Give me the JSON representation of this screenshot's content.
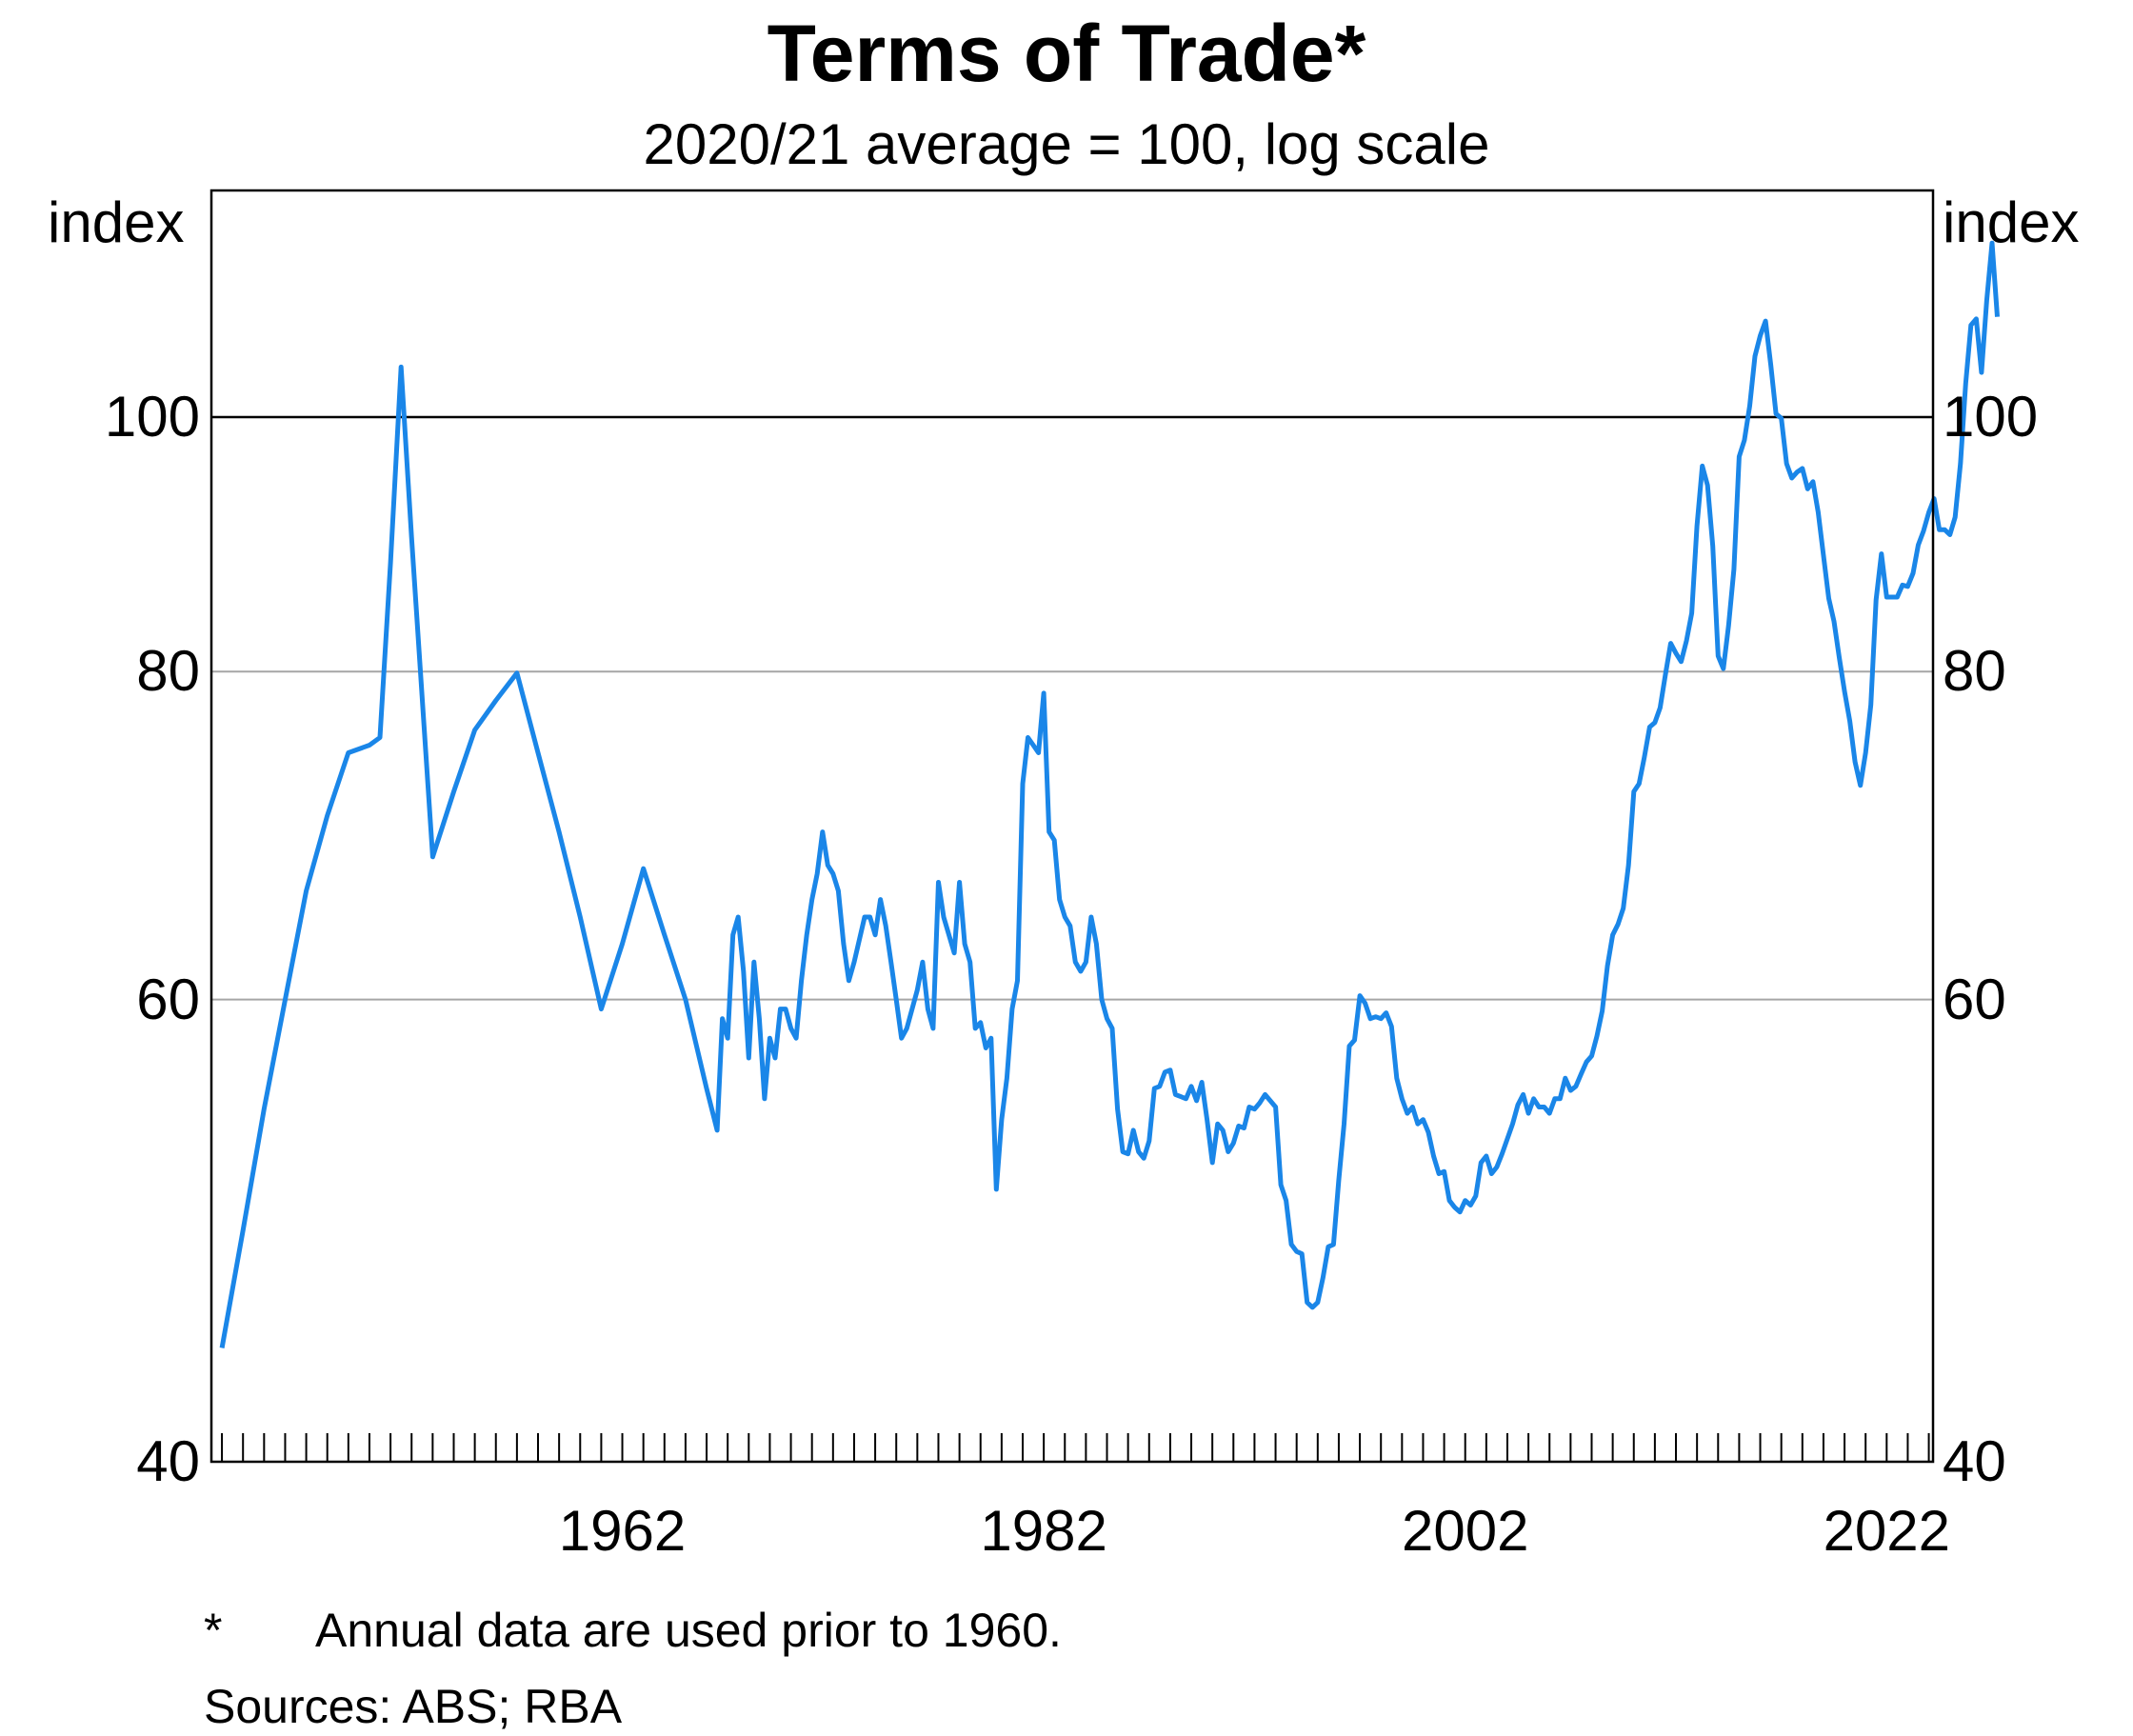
{
  "chart_data": {
    "type": "line",
    "title": "Terms of Trade*",
    "subtitle": "2020/21 average = 100, log scale",
    "ylabel_left": "index",
    "ylabel_right": "index",
    "y_scale": "log",
    "ylim": [
      40,
      122
    ],
    "xlim": [
      1942.5,
      2024.2
    ],
    "y_ticks": [
      40,
      60,
      80,
      100
    ],
    "x_ticks": [
      1962,
      1982,
      2002,
      2022
    ],
    "reference_line": 100,
    "grid": true,
    "series": [
      {
        "name": "Terms of trade",
        "color": "#1a86e8",
        "points": [
          [
            1943.0,
            44.2
          ],
          [
            1944.0,
            49.0
          ],
          [
            1945.0,
            54.5
          ],
          [
            1946.0,
            60.0
          ],
          [
            1947.0,
            66.0
          ],
          [
            1948.0,
            70.5
          ],
          [
            1949.0,
            74.5
          ],
          [
            1950.0,
            75.0
          ],
          [
            1950.5,
            75.5
          ],
          [
            1951.0,
            88.0
          ],
          [
            1951.5,
            104.5
          ],
          [
            1952.0,
            90.0
          ],
          [
            1953.0,
            68.0
          ],
          [
            1954.0,
            72.0
          ],
          [
            1955.0,
            76.0
          ],
          [
            1956.0,
            78.0
          ],
          [
            1957.0,
            79.9
          ],
          [
            1958.0,
            74.5
          ],
          [
            1959.0,
            69.5
          ],
          [
            1960.0,
            64.5
          ],
          [
            1961.0,
            59.5
          ],
          [
            1962.0,
            63.0
          ],
          [
            1963.0,
            67.3
          ],
          [
            1964.0,
            63.5
          ],
          [
            1965.0,
            60.0
          ],
          [
            1966.0,
            55.5
          ],
          [
            1966.5,
            53.5
          ],
          [
            1966.75,
            59.0
          ],
          [
            1967.0,
            58.0
          ],
          [
            1967.25,
            63.5
          ],
          [
            1967.5,
            64.5
          ],
          [
            1967.75,
            61.5
          ],
          [
            1968.0,
            57.0
          ],
          [
            1968.25,
            62.0
          ],
          [
            1968.5,
            59.0
          ],
          [
            1968.75,
            55.0
          ],
          [
            1969.0,
            58.0
          ],
          [
            1969.25,
            57.0
          ],
          [
            1969.5,
            59.5
          ],
          [
            1969.75,
            59.5
          ],
          [
            1970.0,
            58.5
          ],
          [
            1970.25,
            58.0
          ],
          [
            1970.5,
            61.0
          ],
          [
            1970.75,
            63.5
          ],
          [
            1971.0,
            65.5
          ],
          [
            1971.25,
            67.0
          ],
          [
            1971.5,
            69.5
          ],
          [
            1971.75,
            67.5
          ],
          [
            1972.0,
            67.0
          ],
          [
            1972.25,
            66.0
          ],
          [
            1972.5,
            63.0
          ],
          [
            1972.75,
            61.0
          ],
          [
            1973.0,
            62.0
          ],
          [
            1973.5,
            64.5
          ],
          [
            1973.75,
            64.5
          ],
          [
            1974.0,
            63.5
          ],
          [
            1974.25,
            65.5
          ],
          [
            1974.5,
            64.0
          ],
          [
            1974.75,
            62.0
          ],
          [
            1975.0,
            60.0
          ],
          [
            1975.25,
            58.0
          ],
          [
            1975.5,
            58.5
          ],
          [
            1976.0,
            60.5
          ],
          [
            1976.25,
            62.0
          ],
          [
            1976.5,
            59.5
          ],
          [
            1976.75,
            58.5
          ],
          [
            1977.0,
            66.5
          ],
          [
            1977.25,
            64.5
          ],
          [
            1977.5,
            63.5
          ],
          [
            1977.75,
            62.5
          ],
          [
            1978.0,
            66.5
          ],
          [
            1978.25,
            63.0
          ],
          [
            1978.5,
            62.0
          ],
          [
            1978.75,
            58.5
          ],
          [
            1979.0,
            58.8
          ],
          [
            1979.25,
            57.5
          ],
          [
            1979.5,
            58.0
          ],
          [
            1979.75,
            50.8
          ],
          [
            1980.0,
            54.0
          ],
          [
            1980.25,
            56.0
          ],
          [
            1980.5,
            59.5
          ],
          [
            1980.75,
            61.0
          ],
          [
            1981.0,
            72.5
          ],
          [
            1981.25,
            75.5
          ],
          [
            1981.5,
            75.0
          ],
          [
            1981.75,
            74.5
          ],
          [
            1982.0,
            78.5
          ],
          [
            1982.25,
            69.5
          ],
          [
            1982.5,
            69.0
          ],
          [
            1982.75,
            65.5
          ],
          [
            1983.0,
            64.5
          ],
          [
            1983.25,
            64.0
          ],
          [
            1983.5,
            62.0
          ],
          [
            1983.75,
            61.5
          ],
          [
            1984.0,
            62.0
          ],
          [
            1984.25,
            64.5
          ],
          [
            1984.5,
            63.0
          ],
          [
            1984.75,
            60.0
          ],
          [
            1985.0,
            59.0
          ],
          [
            1985.25,
            58.5
          ],
          [
            1985.5,
            54.5
          ],
          [
            1985.75,
            52.5
          ],
          [
            1986.0,
            52.4
          ],
          [
            1986.25,
            53.5
          ],
          [
            1986.5,
            52.5
          ],
          [
            1986.75,
            52.2
          ],
          [
            1987.0,
            53.0
          ],
          [
            1987.25,
            55.5
          ],
          [
            1987.5,
            55.6
          ],
          [
            1987.75,
            56.3
          ],
          [
            1988.0,
            56.4
          ],
          [
            1988.25,
            55.2
          ],
          [
            1988.5,
            55.1
          ],
          [
            1988.75,
            55.0
          ],
          [
            1989.0,
            55.6
          ],
          [
            1989.25,
            54.9
          ],
          [
            1989.5,
            55.8
          ],
          [
            1989.75,
            54.0
          ],
          [
            1990.0,
            52.0
          ],
          [
            1990.25,
            53.8
          ],
          [
            1990.5,
            53.5
          ],
          [
            1990.75,
            52.5
          ],
          [
            1991.0,
            52.9
          ],
          [
            1991.25,
            53.7
          ],
          [
            1991.5,
            53.6
          ],
          [
            1991.75,
            54.6
          ],
          [
            1992.0,
            54.5
          ],
          [
            1992.25,
            54.8
          ],
          [
            1992.5,
            55.2
          ],
          [
            1992.75,
            54.9
          ],
          [
            1993.0,
            54.6
          ],
          [
            1993.25,
            51.0
          ],
          [
            1993.5,
            50.3
          ],
          [
            1993.75,
            48.4
          ],
          [
            1994.0,
            48.1
          ],
          [
            1994.25,
            48.0
          ],
          [
            1994.5,
            46.0
          ],
          [
            1994.75,
            45.8
          ],
          [
            1995.0,
            46.0
          ],
          [
            1995.25,
            47.0
          ],
          [
            1995.5,
            48.3
          ],
          [
            1995.75,
            48.4
          ],
          [
            1996.0,
            51.2
          ],
          [
            1996.25,
            53.8
          ],
          [
            1996.5,
            57.6
          ],
          [
            1996.75,
            57.9
          ],
          [
            1997.0,
            60.2
          ],
          [
            1997.25,
            59.8
          ],
          [
            1997.5,
            59.0
          ],
          [
            1997.75,
            59.1
          ],
          [
            1998.0,
            59.0
          ],
          [
            1998.25,
            59.3
          ],
          [
            1998.5,
            58.6
          ],
          [
            1998.75,
            56.0
          ],
          [
            1999.0,
            55.0
          ],
          [
            1999.25,
            54.3
          ],
          [
            1999.5,
            54.6
          ],
          [
            1999.75,
            53.8
          ],
          [
            2000.0,
            54.0
          ],
          [
            2000.25,
            53.4
          ],
          [
            2000.5,
            52.3
          ],
          [
            2000.75,
            51.5
          ],
          [
            2001.0,
            51.6
          ],
          [
            2001.25,
            50.3
          ],
          [
            2001.5,
            50.0
          ],
          [
            2001.75,
            49.8
          ],
          [
            2002.0,
            50.3
          ],
          [
            2002.25,
            50.1
          ],
          [
            2002.5,
            50.5
          ],
          [
            2002.75,
            52.0
          ],
          [
            2003.0,
            52.3
          ],
          [
            2003.25,
            51.5
          ],
          [
            2003.5,
            51.8
          ],
          [
            2003.75,
            52.4
          ],
          [
            2004.0,
            53.1
          ],
          [
            2004.25,
            53.8
          ],
          [
            2004.5,
            54.7
          ],
          [
            2004.75,
            55.2
          ],
          [
            2005.0,
            54.3
          ],
          [
            2005.25,
            55.0
          ],
          [
            2005.5,
            54.6
          ],
          [
            2005.75,
            54.6
          ],
          [
            2006.0,
            54.3
          ],
          [
            2006.25,
            55.0
          ],
          [
            2006.5,
            55.0
          ],
          [
            2006.75,
            56.0
          ],
          [
            2007.0,
            55.4
          ],
          [
            2007.25,
            55.6
          ],
          [
            2007.5,
            56.2
          ],
          [
            2007.75,
            56.8
          ],
          [
            2008.0,
            57.1
          ],
          [
            2008.25,
            58.1
          ],
          [
            2008.5,
            59.4
          ],
          [
            2008.75,
            61.8
          ],
          [
            2009.0,
            63.5
          ],
          [
            2009.25,
            64.1
          ],
          [
            2009.5,
            65.0
          ],
          [
            2009.75,
            67.5
          ],
          [
            2010.0,
            72.0
          ],
          [
            2010.25,
            72.5
          ],
          [
            2010.5,
            74.2
          ],
          [
            2010.75,
            76.2
          ],
          [
            2011.0,
            76.5
          ],
          [
            2011.25,
            77.5
          ],
          [
            2011.5,
            79.8
          ],
          [
            2011.75,
            82.0
          ],
          [
            2012.0,
            81.3
          ],
          [
            2012.25,
            80.7
          ],
          [
            2012.5,
            82.2
          ],
          [
            2012.75,
            84.2
          ],
          [
            2013.0,
            90.9
          ],
          [
            2013.25,
            95.8
          ],
          [
            2013.5,
            94.2
          ],
          [
            2013.75,
            89.3
          ],
          [
            2014.0,
            81.1
          ],
          [
            2014.25,
            80.2
          ],
          [
            2014.5,
            83.3
          ],
          [
            2014.75,
            87.5
          ],
          [
            2015.0,
            96.6
          ],
          [
            2015.25,
            98.0
          ],
          [
            2015.5,
            101.0
          ],
          [
            2015.75,
            105.5
          ],
          [
            2016.0,
            107.4
          ],
          [
            2016.25,
            108.8
          ],
          [
            2016.5,
            104.7
          ],
          [
            2016.75,
            100.3
          ],
          [
            2017.0,
            99.9
          ],
          [
            2017.25,
            96.0
          ],
          [
            2017.5,
            94.8
          ],
          [
            2017.75,
            95.3
          ],
          [
            2018.0,
            95.6
          ],
          [
            2018.25,
            93.9
          ],
          [
            2018.5,
            94.5
          ],
          [
            2018.75,
            92.0
          ],
          [
            2019.0,
            88.6
          ],
          [
            2019.25,
            85.3
          ],
          [
            2019.5,
            83.6
          ],
          [
            2019.75,
            81.0
          ],
          [
            2020.0,
            78.6
          ],
          [
            2020.25,
            76.6
          ],
          [
            2020.5,
            73.9
          ],
          [
            2020.75,
            72.4
          ],
          [
            2021.0,
            74.5
          ],
          [
            2021.25,
            77.7
          ],
          [
            2021.5,
            85.2
          ],
          [
            2021.75,
            88.7
          ],
          [
            2022.0,
            85.4
          ],
          [
            2022.25,
            85.4
          ],
          [
            2022.5,
            85.4
          ],
          [
            2022.75,
            86.3
          ],
          [
            2023.0,
            86.2
          ],
          [
            2023.25,
            87.2
          ],
          [
            2023.5,
            89.4
          ],
          [
            2023.75,
            90.5
          ],
          [
            2024.0,
            92.0
          ],
          [
            2024.25,
            93.1
          ],
          [
            2024.5,
            90.6
          ],
          [
            2024.75,
            90.6
          ],
          [
            2025.0,
            90.2
          ],
          [
            2025.25,
            91.6
          ],
          [
            2025.5,
            96.0
          ],
          [
            2025.75,
            103.0
          ],
          [
            2026.0,
            108.4
          ],
          [
            2026.25,
            109.0
          ],
          [
            2026.5,
            104.0
          ],
          [
            2026.75,
            110.8
          ],
          [
            2027.0,
            116.5
          ],
          [
            2027.25,
            109.2
          ]
        ]
      }
    ]
  },
  "footnotes": {
    "star_marker": "*",
    "star_text": "Annual data are used prior to 1960.",
    "sources": "Sources: ABS; RBA"
  }
}
